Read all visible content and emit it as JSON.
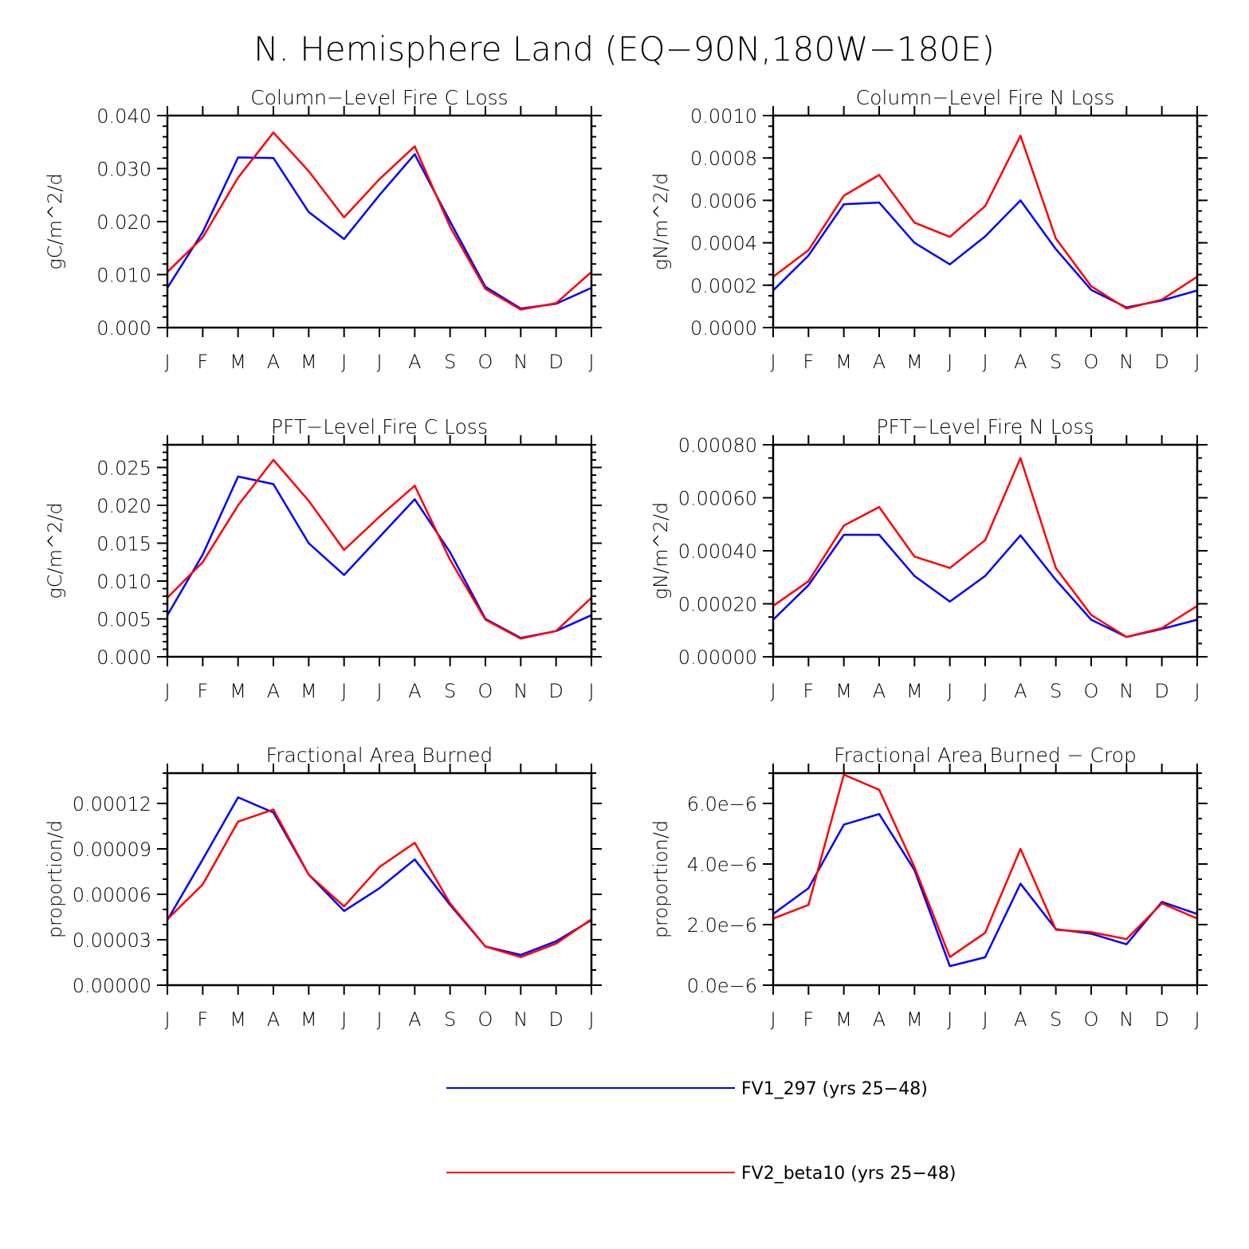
{
  "figure_title": "N. Hemisphere Land (EQ−90N,180W−180E)",
  "legend": [
    {
      "name": "FV1_297 (yrs 25−48)",
      "color": "#0000ff"
    },
    {
      "name": "FV2_beta10 (yrs 25−48)",
      "color": "#ff0000"
    }
  ],
  "chart_data": [
    {
      "type": "line",
      "title": "Column−Level Fire C Loss",
      "ylabel": "gC/m^2/d",
      "categories": [
        "J",
        "F",
        "M",
        "A",
        "M",
        "J",
        "J",
        "A",
        "S",
        "O",
        "N",
        "D",
        "J"
      ],
      "ylim": [
        0,
        0.04
      ],
      "yticks": [
        0,
        0.01,
        0.02,
        0.03,
        0.04
      ],
      "ytick_labels": [
        "0.000",
        "0.010",
        "0.020",
        "0.030",
        "0.040"
      ],
      "minor_y_step": 0.002,
      "series": [
        {
          "name": "FV1_297 (yrs 25−48)",
          "color": "#0000ff",
          "values": [
            0.0075,
            0.018,
            0.0321,
            0.032,
            0.0218,
            0.0167,
            0.025,
            0.0327,
            0.02,
            0.0077,
            0.0036,
            0.0045,
            0.0075
          ]
        },
        {
          "name": "FV2_beta10 (yrs 25−48)",
          "color": "#ff0000",
          "values": [
            0.0105,
            0.017,
            0.0283,
            0.0368,
            0.0295,
            0.0208,
            0.028,
            0.0342,
            0.019,
            0.0073,
            0.0034,
            0.0046,
            0.0105
          ]
        }
      ]
    },
    {
      "type": "line",
      "title": "Column−Level Fire N Loss",
      "ylabel": "gN/m^2/d",
      "categories": [
        "J",
        "F",
        "M",
        "A",
        "M",
        "J",
        "J",
        "A",
        "S",
        "O",
        "N",
        "D",
        "J"
      ],
      "ylim": [
        0,
        0.001
      ],
      "yticks": [
        0,
        0.0002,
        0.0004,
        0.0006,
        0.0008,
        0.001
      ],
      "ytick_labels": [
        "0.0000",
        "0.0002",
        "0.0004",
        "0.0006",
        "0.0008",
        "0.0010"
      ],
      "minor_y_step": 5e-05,
      "series": [
        {
          "name": "FV1_297 (yrs 25−48)",
          "color": "#0000ff",
          "values": [
            0.000175,
            0.00034,
            0.000582,
            0.00059,
            0.0004,
            0.000298,
            0.00043,
            0.0006,
            0.00037,
            0.000178,
            9.5e-05,
            0.000128,
            0.000175
          ]
        },
        {
          "name": "FV2_beta10 (yrs 25−48)",
          "color": "#ff0000",
          "values": [
            0.00024,
            0.000365,
            0.000622,
            0.00072,
            0.000495,
            0.000428,
            0.000573,
            0.000905,
            0.00042,
            0.000195,
            9e-05,
            0.000132,
            0.00024
          ]
        }
      ]
    },
    {
      "type": "line",
      "title": "PFT−Level Fire C Loss",
      "ylabel": "gC/m^2/d",
      "categories": [
        "J",
        "F",
        "M",
        "A",
        "M",
        "J",
        "J",
        "A",
        "S",
        "O",
        "N",
        "D",
        "J"
      ],
      "ylim": [
        0,
        0.028
      ],
      "yticks": [
        0,
        0.005,
        0.01,
        0.015,
        0.02,
        0.025
      ],
      "ytick_labels": [
        "0.000",
        "0.005",
        "0.010",
        "0.015",
        "0.020",
        "0.025"
      ],
      "minor_y_step": 0.001,
      "series": [
        {
          "name": "FV1_297 (yrs 25−48)",
          "color": "#0000ff",
          "values": [
            0.0055,
            0.0135,
            0.0238,
            0.0228,
            0.015,
            0.0108,
            0.0158,
            0.0208,
            0.0138,
            0.005,
            0.0025,
            0.0034,
            0.0055
          ]
        },
        {
          "name": "FV2_beta10 (yrs 25−48)",
          "color": "#ff0000",
          "values": [
            0.0078,
            0.0125,
            0.02,
            0.026,
            0.0206,
            0.0141,
            0.0185,
            0.0226,
            0.0128,
            0.0049,
            0.0024,
            0.0034,
            0.0078
          ]
        }
      ]
    },
    {
      "type": "line",
      "title": "PFT−Level Fire N Loss",
      "ylabel": "gN/m^2/d",
      "categories": [
        "J",
        "F",
        "M",
        "A",
        "M",
        "J",
        "J",
        "A",
        "S",
        "O",
        "N",
        "D",
        "J"
      ],
      "ylim": [
        0,
        0.0008
      ],
      "yticks": [
        0,
        0.0002,
        0.0004,
        0.0006,
        0.0008
      ],
      "ytick_labels": [
        "0.00000",
        "0.00020",
        "0.00040",
        "0.00060",
        "0.00080"
      ],
      "minor_y_step": 5e-05,
      "series": [
        {
          "name": "FV1_297 (yrs 25−48)",
          "color": "#0000ff",
          "values": [
            0.00014,
            0.00027,
            0.00046,
            0.00046,
            0.000305,
            0.000208,
            0.000305,
            0.000458,
            0.00029,
            0.00014,
            7.5e-05,
            0.000105,
            0.00014
          ]
        },
        {
          "name": "FV2_beta10 (yrs 25−48)",
          "color": "#ff0000",
          "values": [
            0.000192,
            0.000285,
            0.000495,
            0.000565,
            0.000378,
            0.000335,
            0.00044,
            0.00075,
            0.000335,
            0.000158,
            7.5e-05,
            0.000108,
            0.000192
          ]
        }
      ]
    },
    {
      "type": "line",
      "title": "Fractional Area Burned",
      "ylabel": "proportion/d",
      "categories": [
        "J",
        "F",
        "M",
        "A",
        "M",
        "J",
        "J",
        "A",
        "S",
        "O",
        "N",
        "D",
        "J"
      ],
      "ylim": [
        0,
        0.00014
      ],
      "yticks": [
        0,
        3e-05,
        6e-05,
        9e-05,
        0.00012
      ],
      "ytick_labels": [
        "0.00000",
        "0.00003",
        "0.00006",
        "0.00009",
        "0.00012"
      ],
      "minor_y_step": 1e-05,
      "series": [
        {
          "name": "FV1_297 (yrs 25−48)",
          "color": "#0000ff",
          "values": [
            4.3e-05,
            8.3e-05,
            0.000124,
            0.000114,
            7.3e-05,
            4.9e-05,
            6.4e-05,
            8.3e-05,
            5.3e-05,
            2.55e-05,
            2e-05,
            2.9e-05,
            4.3e-05
          ]
        },
        {
          "name": "FV2_beta10 (yrs 25−48)",
          "color": "#ff0000",
          "values": [
            4.35e-05,
            6.65e-05,
            0.000108,
            0.000116,
            7.3e-05,
            5.2e-05,
            7.8e-05,
            9.4e-05,
            5.4e-05,
            2.55e-05,
            1.85e-05,
            2.75e-05,
            4.35e-05
          ]
        }
      ]
    },
    {
      "type": "line",
      "title": "Fractional Area Burned − Crop",
      "ylabel": "proportion/d",
      "categories": [
        "J",
        "F",
        "M",
        "A",
        "M",
        "J",
        "J",
        "A",
        "S",
        "O",
        "N",
        "D",
        "J"
      ],
      "ylim": [
        0,
        7e-06
      ],
      "yticks": [
        0,
        2e-06,
        4e-06,
        6e-06
      ],
      "ytick_labels": [
        "0.0e−6",
        "2.0e−6",
        "4.0e−6",
        "6.0e−6"
      ],
      "minor_y_step": 5e-07,
      "series": [
        {
          "name": "FV1_297 (yrs 25−48)",
          "color": "#0000ff",
          "values": [
            2.35e-06,
            3.2e-06,
            5.3e-06,
            5.65e-06,
            3.8e-06,
            6.3e-07,
            9.2e-07,
            3.35e-06,
            1.85e-06,
            1.7e-06,
            1.35e-06,
            2.75e-06,
            2.35e-06
          ]
        },
        {
          "name": "FV2_beta10 (yrs 25−48)",
          "color": "#ff0000",
          "values": [
            2.2e-06,
            2.65e-06,
            6.95e-06,
            6.45e-06,
            3.9e-06,
            9.3e-07,
            1.73e-06,
            4.5e-06,
            1.83e-06,
            1.75e-06,
            1.52e-06,
            2.7e-06,
            2.2e-06
          ]
        }
      ]
    }
  ]
}
